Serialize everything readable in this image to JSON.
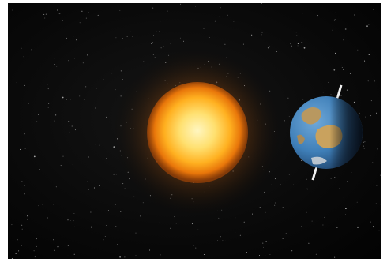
{
  "scene": {
    "subject": "sun-and-earth-in-space",
    "colors": {
      "space": "#050505",
      "sun_core": "#ffef9a",
      "sun_mid": "#ffb21a",
      "sun_outer": "#d85a06",
      "earth_ocean": "#3f7fb8",
      "earth_land": "#c79a5a",
      "earth_shadow": "#0c1a2a",
      "axis": "#e8e8e8"
    }
  }
}
